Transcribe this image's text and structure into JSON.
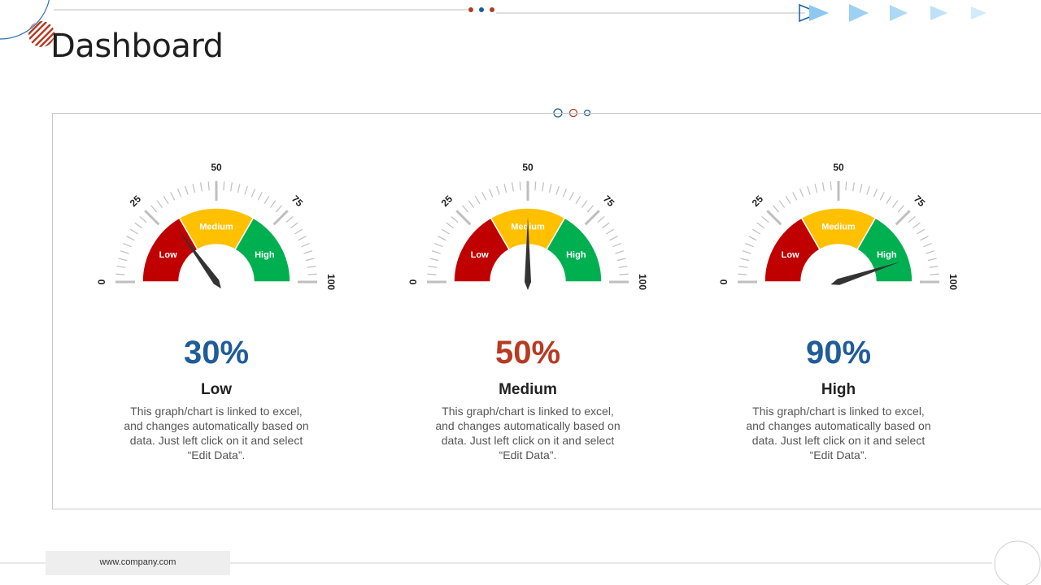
{
  "slide": {
    "title": "Dashboard",
    "footer_url": "www.company.com"
  },
  "colors": {
    "low": "#c00000",
    "medium": "#ffc000",
    "high": "#00b050",
    "blue": "#1f5c99",
    "red": "#b73a22",
    "tick": "#bfbfbf",
    "needle": "#333333"
  },
  "chart_data": [
    {
      "type": "gauge",
      "value": 30,
      "range": [
        0,
        100
      ],
      "tick_labels": [
        "0",
        "25",
        "50",
        "75",
        "100"
      ],
      "bands": [
        "Low",
        "Medium",
        "High"
      ],
      "value_label": "30%",
      "level_label": "Low",
      "description": "This graph/chart is linked to excel, and changes automatically based on data. Just left click on it and select “Edit Data”.",
      "value_color": "#1f5c99"
    },
    {
      "type": "gauge",
      "value": 50,
      "range": [
        0,
        100
      ],
      "tick_labels": [
        "0",
        "25",
        "50",
        "75",
        "100"
      ],
      "bands": [
        "Low",
        "Medium",
        "High"
      ],
      "value_label": "50%",
      "level_label": "Medium",
      "description": "This graph/chart is linked to excel, and changes automatically based on data. Just left click on it and select “Edit Data”.",
      "value_color": "#b73a22"
    },
    {
      "type": "gauge",
      "value": 90,
      "range": [
        0,
        100
      ],
      "tick_labels": [
        "0",
        "25",
        "50",
        "75",
        "100"
      ],
      "bands": [
        "Low",
        "Medium",
        "High"
      ],
      "value_label": "90%",
      "level_label": "High",
      "description": "This graph/chart is linked to excel, and changes automatically based on data. Just left click on it and select “Edit Data”.",
      "value_color": "#1f5c99"
    }
  ]
}
